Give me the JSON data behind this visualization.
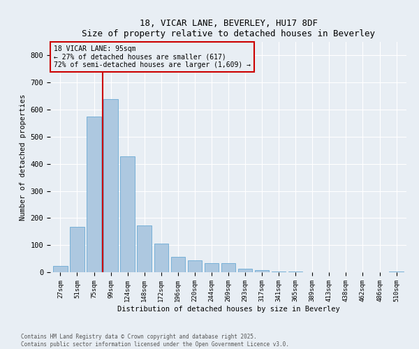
{
  "title": "18, VICAR LANE, BEVERLEY, HU17 8DF",
  "subtitle": "Size of property relative to detached houses in Beverley",
  "xlabel": "Distribution of detached houses by size in Beverley",
  "ylabel": "Number of detached properties",
  "categories": [
    "27sqm",
    "51sqm",
    "75sqm",
    "99sqm",
    "124sqm",
    "148sqm",
    "172sqm",
    "196sqm",
    "220sqm",
    "244sqm",
    "269sqm",
    "293sqm",
    "317sqm",
    "341sqm",
    "365sqm",
    "389sqm",
    "413sqm",
    "438sqm",
    "462sqm",
    "486sqm",
    "510sqm"
  ],
  "values": [
    22,
    168,
    575,
    638,
    428,
    172,
    105,
    57,
    45,
    33,
    33,
    13,
    8,
    2,
    2,
    0,
    0,
    0,
    0,
    0,
    3
  ],
  "bar_color": "#adc8e0",
  "bar_edge_color": "#6aaad4",
  "vline_x": 2.5,
  "vline_color": "#cc0000",
  "annotation_title": "18 VICAR LANE: 95sqm",
  "annotation_line1": "← 27% of detached houses are smaller (617)",
  "annotation_line2": "72% of semi-detached houses are larger (1,609) →",
  "annotation_box_color": "#cc0000",
  "ylim": [
    0,
    850
  ],
  "yticks": [
    0,
    100,
    200,
    300,
    400,
    500,
    600,
    700,
    800
  ],
  "footer_line1": "Contains HM Land Registry data © Crown copyright and database right 2025.",
  "footer_line2": "Contains public sector information licensed under the Open Government Licence v3.0.",
  "bg_color": "#e8eef4",
  "grid_color": "#ffffff"
}
